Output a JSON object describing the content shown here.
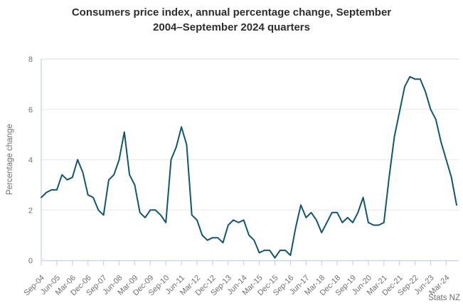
{
  "title": {
    "line1": "Consumers price index, annual percentage change, September",
    "line2": "2004–September 2024 quarters"
  },
  "source": "Stats NZ",
  "colors": {
    "line": "#105670",
    "gridline": "#ececec",
    "top_border": "#dce2ee",
    "axis": "#c7d0e8",
    "tick_label": "#707070",
    "title_text": "#2e2e2e",
    "axis_title": "#6f6f6f"
  },
  "chart_data": {
    "type": "line",
    "title": "Consumers price index, annual percentage change, September 2004–September 2024 quarters",
    "xlabel": "",
    "ylabel": "Percentage change",
    "ylim": [
      0,
      8
    ],
    "yticks": [
      0,
      2,
      4,
      6,
      8
    ],
    "grid": true,
    "legend": "none",
    "xtick_every": 3,
    "x": [
      "Sep-04",
      "Dec-04",
      "Mar-05",
      "Jun-05",
      "Sep-05",
      "Dec-05",
      "Mar-06",
      "Jun-06",
      "Sep-06",
      "Dec-06",
      "Mar-07",
      "Jun-07",
      "Sep-07",
      "Dec-07",
      "Mar-08",
      "Jun-08",
      "Sep-08",
      "Dec-08",
      "Mar-09",
      "Jun-09",
      "Sep-09",
      "Dec-09",
      "Mar-10",
      "Jun-10",
      "Sep-10",
      "Dec-10",
      "Mar-11",
      "Jun-11",
      "Sep-11",
      "Dec-11",
      "Mar-12",
      "Jun-12",
      "Sep-12",
      "Dec-12",
      "Mar-13",
      "Jun-13",
      "Sep-13",
      "Dec-13",
      "Mar-14",
      "Jun-14",
      "Sep-14",
      "Dec-14",
      "Mar-15",
      "Jun-15",
      "Sep-15",
      "Dec-15",
      "Mar-16",
      "Jun-16",
      "Sep-16",
      "Dec-16",
      "Mar-17",
      "Jun-17",
      "Sep-17",
      "Dec-17",
      "Mar-18",
      "Jun-18",
      "Sep-18",
      "Dec-18",
      "Mar-19",
      "Jun-19",
      "Sep-19",
      "Dec-19",
      "Mar-20",
      "Jun-20",
      "Sep-20",
      "Dec-20",
      "Mar-21",
      "Jun-21",
      "Sep-21",
      "Dec-21",
      "Mar-22",
      "Jun-22",
      "Sep-22",
      "Dec-22",
      "Mar-23",
      "Jun-23",
      "Sep-23",
      "Dec-23",
      "Mar-24",
      "Jun-24",
      "Sep-24"
    ],
    "values": [
      2.5,
      2.7,
      2.8,
      2.8,
      3.4,
      3.2,
      3.3,
      4.0,
      3.5,
      2.6,
      2.5,
      2.0,
      1.8,
      3.2,
      3.4,
      4.0,
      5.1,
      3.4,
      3.0,
      1.9,
      1.7,
      2.0,
      2.0,
      1.8,
      1.5,
      4.0,
      4.5,
      5.3,
      4.6,
      1.8,
      1.6,
      1.0,
      0.8,
      0.9,
      0.9,
      0.7,
      1.4,
      1.6,
      1.5,
      1.6,
      1.0,
      0.8,
      0.3,
      0.4,
      0.4,
      0.1,
      0.4,
      0.4,
      0.2,
      1.3,
      2.2,
      1.7,
      1.9,
      1.6,
      1.1,
      1.5,
      1.9,
      1.9,
      1.5,
      1.7,
      1.5,
      1.9,
      2.5,
      1.5,
      1.4,
      1.4,
      1.5,
      3.3,
      4.9,
      5.9,
      6.9,
      7.3,
      7.2,
      7.2,
      6.7,
      6.0,
      5.6,
      4.7,
      4.0,
      3.3,
      2.2
    ],
    "visible_xtick_labels": [
      "Sep-04",
      "Jun-05",
      "Mar-06",
      "Dec-06",
      "Sep-07",
      "Jun-08",
      "Mar-09",
      "Dec-09",
      "Sep-10",
      "Jun-11",
      "Mar-12",
      "Dec-12",
      "Sep-13",
      "Jun-14",
      "Mar-15",
      "Dec-15",
      "Sep-16",
      "Jun-17",
      "Mar-18",
      "Dec-18",
      "Sep-19",
      "Jun-20",
      "Mar-21",
      "Dec-21",
      "Sep-22",
      "Jun-23",
      "Mar-24"
    ]
  }
}
